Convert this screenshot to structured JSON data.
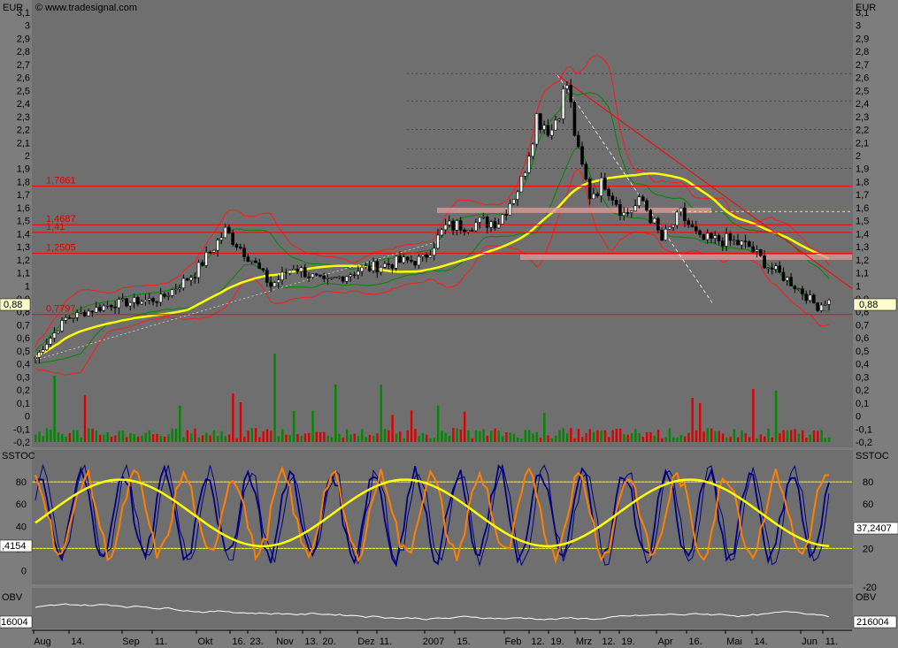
{
  "watermark": "© www.tradesignal.com",
  "price_panel": {
    "currency_label": "EUR",
    "y_ticks": [
      "3,1",
      "3",
      "2,9",
      "2,8",
      "2,7",
      "2,6",
      "2,5",
      "2,4",
      "2,3",
      "2,2",
      "2,1",
      "2",
      "1,9",
      "1,8",
      "1,7",
      "1,6",
      "1,5",
      "1,4",
      "1,3",
      "1,2",
      "1,1",
      "1",
      "0,9",
      "0,8",
      "0,7",
      "0,6",
      "0,5",
      "0,4",
      "0,3",
      "0,2",
      "0,1",
      "0",
      "-0,1",
      "-0,2"
    ],
    "y_tick_values": [
      3.1,
      3.0,
      2.9,
      2.8,
      2.7,
      2.6,
      2.5,
      2.4,
      2.3,
      2.2,
      2.1,
      2.0,
      1.9,
      1.8,
      1.7,
      1.6,
      1.5,
      1.4,
      1.3,
      1.2,
      1.1,
      1.0,
      0.9,
      0.8,
      0.7,
      0.6,
      0.5,
      0.4,
      0.3,
      0.2,
      0.1,
      0.0,
      -0.1,
      -0.2
    ],
    "current_price_label": "0,88",
    "current_price": 0.88,
    "levels": [
      {
        "label": "1,7661",
        "value": 1.7661
      },
      {
        "label": "1,4687",
        "value": 1.4687
      },
      {
        "label": "1,41",
        "value": 1.41
      },
      {
        "label": "1,2505",
        "value": 1.2505
      },
      {
        "label": "0,7797",
        "value": 0.7797
      }
    ]
  },
  "stoch_panel": {
    "title": "SSTOC",
    "y_ticks_left": [
      "80",
      "60",
      "40",
      "20",
      "0"
    ],
    "y_ticks_right": [
      "80",
      "60",
      "40",
      "20",
      "-20"
    ],
    "left_value_label": ",4154",
    "right_value_label": "37,2407",
    "band_upper": 80,
    "band_lower": 20
  },
  "obv_panel": {
    "title": "OBV",
    "left_value_label": "16004",
    "right_value_label": "216004"
  },
  "x_axis": {
    "labels": [
      "Aug",
      "14.",
      "Sep",
      "11.",
      "Okt",
      "16.",
      "23.",
      "Nov",
      "13.",
      "20.",
      "Dez",
      "11.",
      "2007",
      "15.",
      "Feb",
      "12.",
      "19.",
      "Mrz",
      "12.",
      "19.",
      "Apr",
      "16.",
      "Mai",
      "14.",
      "Jun",
      "11."
    ]
  },
  "chart_data": {
    "type": "candlestick",
    "title": "",
    "xlabel": "",
    "ylabel": "EUR",
    "ylim": [
      -0.2,
      3.1
    ],
    "x_labels": [
      "Aug",
      "14.",
      "Sep",
      "11.",
      "Okt",
      "16.",
      "23.",
      "Nov",
      "13.",
      "20.",
      "Dez",
      "11.",
      "2007",
      "15.",
      "Feb",
      "12.",
      "19.",
      "Mrz",
      "12.",
      "19.",
      "Apr",
      "16.",
      "Mai",
      "14.",
      "Jun",
      "11."
    ],
    "close_series": [
      {
        "idx": 0,
        "close": 0.45
      },
      {
        "idx": 8,
        "close": 0.75
      },
      {
        "idx": 20,
        "close": 0.86
      },
      {
        "idx": 33,
        "close": 0.9
      },
      {
        "idx": 42,
        "close": 1.1
      },
      {
        "idx": 50,
        "close": 1.42
      },
      {
        "idx": 57,
        "close": 1.2
      },
      {
        "idx": 62,
        "close": 1.0
      },
      {
        "idx": 68,
        "close": 1.15
      },
      {
        "idx": 76,
        "close": 1.02
      },
      {
        "idx": 85,
        "close": 1.12
      },
      {
        "idx": 95,
        "close": 1.18
      },
      {
        "idx": 102,
        "close": 1.2
      },
      {
        "idx": 108,
        "close": 1.45
      },
      {
        "idx": 115,
        "close": 1.48
      },
      {
        "idx": 122,
        "close": 1.5
      },
      {
        "idx": 128,
        "close": 1.8
      },
      {
        "idx": 132,
        "close": 2.3
      },
      {
        "idx": 136,
        "close": 2.2
      },
      {
        "idx": 140,
        "close": 2.55
      },
      {
        "idx": 143,
        "close": 2.0
      },
      {
        "idx": 146,
        "close": 1.7
      },
      {
        "idx": 150,
        "close": 1.8
      },
      {
        "idx": 155,
        "close": 1.55
      },
      {
        "idx": 160,
        "close": 1.65
      },
      {
        "idx": 165,
        "close": 1.35
      },
      {
        "idx": 170,
        "close": 1.55
      },
      {
        "idx": 175,
        "close": 1.35
      },
      {
        "idx": 182,
        "close": 1.35
      },
      {
        "idx": 188,
        "close": 1.3
      },
      {
        "idx": 193,
        "close": 1.15
      },
      {
        "idx": 198,
        "close": 1.05
      },
      {
        "idx": 202,
        "close": 0.95
      },
      {
        "idx": 206,
        "close": 0.84
      },
      {
        "idx": 208,
        "close": 0.88
      }
    ],
    "indicators": [
      "Bollinger Bands",
      "Moving Average",
      "Volume",
      "Stochastic",
      "OBV"
    ],
    "horizontal_levels": [
      1.7661,
      1.4687,
      1.41,
      1.2505,
      0.7797
    ]
  }
}
